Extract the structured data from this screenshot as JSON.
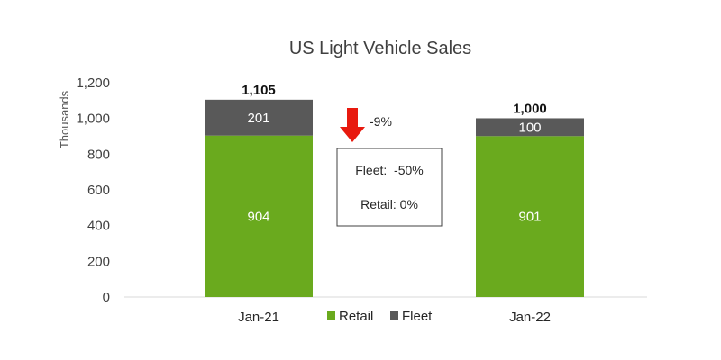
{
  "chart_data": {
    "type": "bar",
    "stacked": true,
    "title": "US Light Vehicle Sales",
    "xlabel": "",
    "ylabel": "Thousands",
    "categories": [
      "Jan-21",
      "Jan-22"
    ],
    "series": [
      {
        "name": "Retail",
        "values": [
          904,
          901
        ],
        "color": "#6aaa1e"
      },
      {
        "name": "Fleet",
        "values": [
          201,
          100
        ],
        "color": "#595959"
      }
    ],
    "totals": [
      "1,105",
      "1,000"
    ],
    "segment_labels": [
      [
        "904",
        "201"
      ],
      [
        "901",
        "100"
      ]
    ],
    "ylim": [
      0,
      1200
    ],
    "yticks": [
      0,
      200,
      400,
      600,
      800,
      1000,
      1200
    ],
    "ytick_labels": [
      "0",
      "200",
      "400",
      "600",
      "800",
      "1,000",
      "1,200"
    ],
    "grid": false,
    "legend": "bottom",
    "annotations": {
      "change": "-9%",
      "change_direction": "down",
      "arrow_color": "#e8190e",
      "box_lines": [
        "Fleet:  -50%",
        "Retail: 0%"
      ]
    }
  }
}
